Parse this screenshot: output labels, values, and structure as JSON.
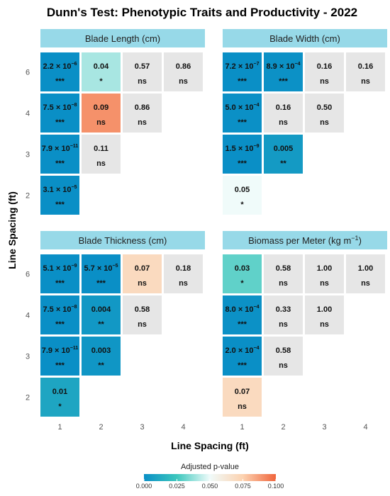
{
  "chart_data": {
    "type": "heatmap",
    "title": "Dunn's Test: Phenotypic Traits and Productivity - 2022",
    "xlabel": "Line Spacing (ft)",
    "ylabel": "Line Spacing (ft)",
    "x_categories": [
      "1",
      "2",
      "3",
      "4"
    ],
    "y_categories": [
      "2",
      "3",
      "4",
      "6"
    ],
    "legend": {
      "title": "Adjusted p-value",
      "position": "bottom",
      "range": [
        0,
        0.1
      ],
      "ticks": [
        "0.000",
        "0.025",
        "0.050",
        "0.075",
        "0.100"
      ],
      "ramp": [
        "#0a8fc6",
        "#3cc7bd",
        "#f0fbfa",
        "#fcd2b0",
        "#f0653c"
      ]
    },
    "panels": [
      {
        "name": "Blade Length (cm)",
        "cells": [
          {
            "x": "1",
            "y": "6",
            "p": 2.2e-06,
            "label": "2.2 × 10",
            "exp": "−6",
            "sig": "***"
          },
          {
            "x": "2",
            "y": "6",
            "p": 0.04,
            "label": "0.04",
            "sig": "*"
          },
          {
            "x": "3",
            "y": "6",
            "p": 0.57,
            "label": "0.57",
            "sig": "ns"
          },
          {
            "x": "4",
            "y": "6",
            "p": 0.86,
            "label": "0.86",
            "sig": "ns"
          },
          {
            "x": "1",
            "y": "4",
            "p": 7.5e-08,
            "label": "7.5 × 10",
            "exp": "−8",
            "sig": "***"
          },
          {
            "x": "2",
            "y": "4",
            "p": 0.09,
            "label": "0.09",
            "sig": "ns"
          },
          {
            "x": "3",
            "y": "4",
            "p": 0.86,
            "label": "0.86",
            "sig": "ns"
          },
          {
            "x": "1",
            "y": "3",
            "p": 7.9e-11,
            "label": "7.9 × 10",
            "exp": "−11",
            "sig": "***"
          },
          {
            "x": "2",
            "y": "3",
            "p": 0.11,
            "label": "0.11",
            "sig": "ns"
          },
          {
            "x": "1",
            "y": "2",
            "p": 3.1e-05,
            "label": "3.1 × 10",
            "exp": "−5",
            "sig": "***"
          }
        ]
      },
      {
        "name": "Blade Width (cm)",
        "cells": [
          {
            "x": "1",
            "y": "6",
            "p": 7.2e-07,
            "label": "7.2 × 10",
            "exp": "−7",
            "sig": "***"
          },
          {
            "x": "2",
            "y": "6",
            "p": 0.00089,
            "label": "8.9 × 10",
            "exp": "−4",
            "sig": "***"
          },
          {
            "x": "3",
            "y": "6",
            "p": 0.16,
            "label": "0.16",
            "sig": "ns"
          },
          {
            "x": "4",
            "y": "6",
            "p": 0.16,
            "label": "0.16",
            "sig": "ns"
          },
          {
            "x": "1",
            "y": "4",
            "p": 0.0005,
            "label": "5.0 × 10",
            "exp": "−4",
            "sig": "***"
          },
          {
            "x": "2",
            "y": "4",
            "p": 0.16,
            "label": "0.16",
            "sig": "ns"
          },
          {
            "x": "3",
            "y": "4",
            "p": 0.5,
            "label": "0.50",
            "sig": "ns"
          },
          {
            "x": "1",
            "y": "3",
            "p": 1.5e-09,
            "label": "1.5 × 10",
            "exp": "−9",
            "sig": "***"
          },
          {
            "x": "2",
            "y": "3",
            "p": 0.005,
            "label": "0.005",
            "sig": "**"
          },
          {
            "x": "1",
            "y": "2",
            "p": 0.05,
            "label": "0.05",
            "sig": "*"
          }
        ]
      },
      {
        "name": "Blade Thickness (cm)",
        "cells": [
          {
            "x": "1",
            "y": "6",
            "p": 5.1e-09,
            "label": "5.1 × 10",
            "exp": "−9",
            "sig": "***"
          },
          {
            "x": "2",
            "y": "6",
            "p": 5.7e-05,
            "label": "5.7 × 10",
            "exp": "−5",
            "sig": "***"
          },
          {
            "x": "3",
            "y": "6",
            "p": 0.07,
            "label": "0.07",
            "sig": "ns"
          },
          {
            "x": "4",
            "y": "6",
            "p": 0.18,
            "label": "0.18",
            "sig": "ns"
          },
          {
            "x": "1",
            "y": "4",
            "p": 7.5e-08,
            "label": "7.5 × 10",
            "exp": "−8",
            "sig": "***"
          },
          {
            "x": "2",
            "y": "4",
            "p": 0.004,
            "label": "0.004",
            "sig": "**"
          },
          {
            "x": "3",
            "y": "4",
            "p": 0.58,
            "label": "0.58",
            "sig": "ns"
          },
          {
            "x": "1",
            "y": "3",
            "p": 7.9e-11,
            "label": "7.9 × 10",
            "exp": "−11",
            "sig": "***"
          },
          {
            "x": "2",
            "y": "3",
            "p": 0.003,
            "label": "0.003",
            "sig": "**"
          },
          {
            "x": "1",
            "y": "2",
            "p": 0.01,
            "label": "0.01",
            "sig": "*"
          }
        ]
      },
      {
        "name": "Biomass per Meter (kg m",
        "name_sup": "−1",
        "name_end": ")",
        "cells": [
          {
            "x": "1",
            "y": "6",
            "p": 0.03,
            "label": "0.03",
            "sig": "*"
          },
          {
            "x": "2",
            "y": "6",
            "p": 0.58,
            "label": "0.58",
            "sig": "ns"
          },
          {
            "x": "3",
            "y": "6",
            "p": 1.0,
            "label": "1.00",
            "sig": "ns"
          },
          {
            "x": "4",
            "y": "6",
            "p": 1.0,
            "label": "1.00",
            "sig": "ns"
          },
          {
            "x": "1",
            "y": "4",
            "p": 0.0008,
            "label": "8.0 × 10",
            "exp": "−4",
            "sig": "***"
          },
          {
            "x": "2",
            "y": "4",
            "p": 0.33,
            "label": "0.33",
            "sig": "ns"
          },
          {
            "x": "3",
            "y": "4",
            "p": 1.0,
            "label": "1.00",
            "sig": "ns"
          },
          {
            "x": "1",
            "y": "3",
            "p": 0.0002,
            "label": "2.0 × 10",
            "exp": "−4",
            "sig": "***"
          },
          {
            "x": "2",
            "y": "3",
            "p": 0.58,
            "label": "0.58",
            "sig": "ns"
          },
          {
            "x": "1",
            "y": "2",
            "p": 0.07,
            "label": "0.07",
            "sig": "ns"
          }
        ]
      }
    ]
  }
}
